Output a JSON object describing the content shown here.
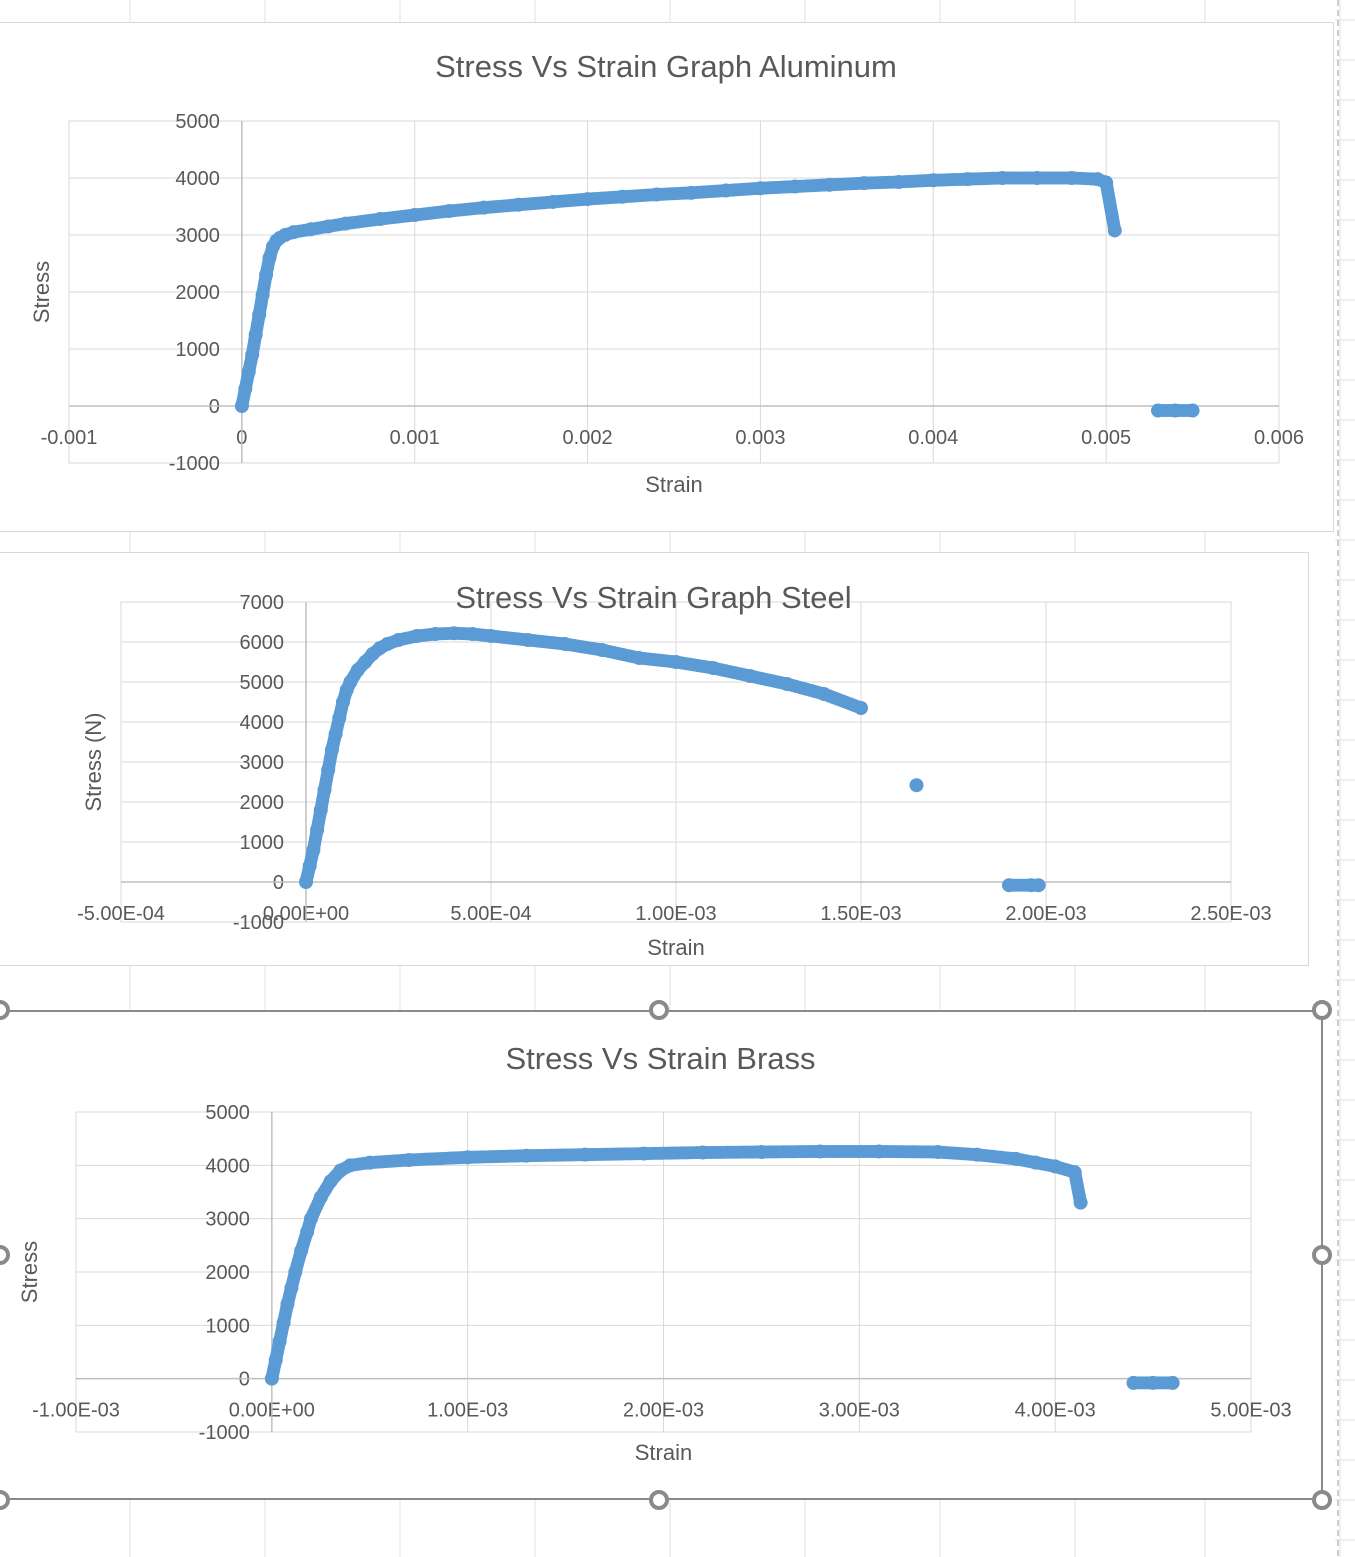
{
  "theme": {
    "marker_color": "#5b9bd5",
    "gridline_color": "#d9d9d9",
    "axis_text_color": "#595959",
    "title_color": "#595959"
  },
  "chart_data": [
    {
      "type": "scatter",
      "title": "Stress Vs Strain Graph Aluminum",
      "xlabel": "Strain",
      "ylabel": "Stress",
      "xlim": [
        -0.001,
        0.006
      ],
      "ylim": [
        -1000,
        5000
      ],
      "x_ticks": [
        "-0.001",
        "0",
        "0.001",
        "0.002",
        "0.003",
        "0.004",
        "0.005",
        "0.006"
      ],
      "y_ticks": [
        "-1000",
        "0",
        "1000",
        "2000",
        "3000",
        "4000",
        "5000"
      ],
      "grid": true,
      "legend": "none",
      "series": [
        {
          "x": [
            0,
            2e-05,
            4e-05,
            6e-05,
            8e-05,
            0.0001,
            0.00012,
            0.00014,
            0.00016,
            0.00018,
            0.0002,
            0.00022,
            0.00025,
            0.0003,
            0.0004,
            0.0005,
            0.0006,
            0.0008,
            0.001,
            0.0012,
            0.0014,
            0.0016,
            0.0018,
            0.002,
            0.0022,
            0.0024,
            0.0026,
            0.0028,
            0.003,
            0.0032,
            0.0034,
            0.0036,
            0.0038,
            0.004,
            0.0042,
            0.0044,
            0.0046,
            0.0048,
            0.00495,
            0.005,
            0.00505,
            0.0053,
            0.0054,
            0.0055
          ],
          "y": [
            0,
            300,
            600,
            900,
            1250,
            1600,
            1950,
            2300,
            2600,
            2800,
            2900,
            2950,
            3000,
            3050,
            3100,
            3150,
            3200,
            3280,
            3350,
            3420,
            3480,
            3530,
            3580,
            3630,
            3670,
            3710,
            3740,
            3780,
            3820,
            3850,
            3880,
            3910,
            3930,
            3960,
            3980,
            4000,
            4000,
            4000,
            3980,
            3920,
            3080,
            -80,
            -80,
            -80
          ]
        }
      ]
    },
    {
      "type": "scatter",
      "title": "Stress Vs Strain Graph Steel",
      "xlabel": "Strain",
      "ylabel": "Stress (N)",
      "xlim": [
        -0.0005,
        0.0025
      ],
      "ylim": [
        -1000,
        7000
      ],
      "x_ticks": [
        "-5.00E-04",
        "0.00E+00",
        "5.00E-04",
        "1.00E-03",
        "1.50E-03",
        "2.00E-03",
        "2.50E-03"
      ],
      "y_ticks": [
        "-1000",
        "0",
        "1000",
        "2000",
        "3000",
        "4000",
        "5000",
        "6000",
        "7000"
      ],
      "grid": true,
      "legend": "none",
      "series": [
        {
          "x": [
            0,
            1e-05,
            2e-05,
            3e-05,
            4e-05,
            5e-05,
            6e-05,
            7e-05,
            8e-05,
            9e-05,
            0.0001,
            0.00011,
            0.00012,
            0.00014,
            0.00016,
            0.00018,
            0.0002,
            0.00022,
            0.00025,
            0.0003,
            0.00035,
            0.0004,
            0.00045,
            0.0005,
            0.0006,
            0.0007,
            0.0008,
            0.0009,
            0.001,
            0.0011,
            0.0012,
            0.0013,
            0.0014,
            0.0015,
            0.00165,
            0.0019,
            0.00196,
            0.00198
          ],
          "y": [
            0,
            400,
            800,
            1300,
            1800,
            2300,
            2800,
            3300,
            3700,
            4100,
            4500,
            4800,
            5000,
            5300,
            5500,
            5700,
            5850,
            5950,
            6050,
            6150,
            6200,
            6220,
            6200,
            6150,
            6050,
            5950,
            5800,
            5600,
            5500,
            5350,
            5150,
            4950,
            4700,
            4350,
            2420,
            -80,
            -80,
            -80
          ]
        }
      ]
    },
    {
      "type": "scatter",
      "title": "Stress Vs Strain Brass",
      "xlabel": "Strain",
      "ylabel": "Stress",
      "xlim": [
        -0.001,
        0.005
      ],
      "ylim": [
        -1000,
        5000
      ],
      "x_ticks": [
        "-1.00E-03",
        "0.00E+00",
        "1.00E-03",
        "2.00E-03",
        "3.00E-03",
        "4.00E-03",
        "5.00E-03"
      ],
      "y_ticks": [
        "-1000",
        "0",
        "1000",
        "2000",
        "3000",
        "4000",
        "5000"
      ],
      "grid": true,
      "legend": "none",
      "series": [
        {
          "x": [
            0,
            2e-05,
            4e-05,
            6e-05,
            8e-05,
            0.0001,
            0.00012,
            0.00015,
            0.00018,
            0.0002,
            0.00025,
            0.0003,
            0.00035,
            0.0004,
            0.0005,
            0.0007,
            0.001,
            0.0013,
            0.0016,
            0.0019,
            0.0022,
            0.0025,
            0.0028,
            0.0031,
            0.0034,
            0.0036,
            0.0038,
            0.0039,
            0.004,
            0.0041,
            0.00413,
            0.0044,
            0.0045,
            0.0046
          ],
          "y": [
            0,
            350,
            700,
            1050,
            1400,
            1700,
            2000,
            2400,
            2750,
            3000,
            3400,
            3700,
            3900,
            4000,
            4050,
            4100,
            4150,
            4180,
            4200,
            4220,
            4240,
            4250,
            4260,
            4260,
            4250,
            4200,
            4120,
            4050,
            3980,
            3870,
            3300,
            -80,
            -80,
            -80
          ]
        }
      ]
    }
  ]
}
